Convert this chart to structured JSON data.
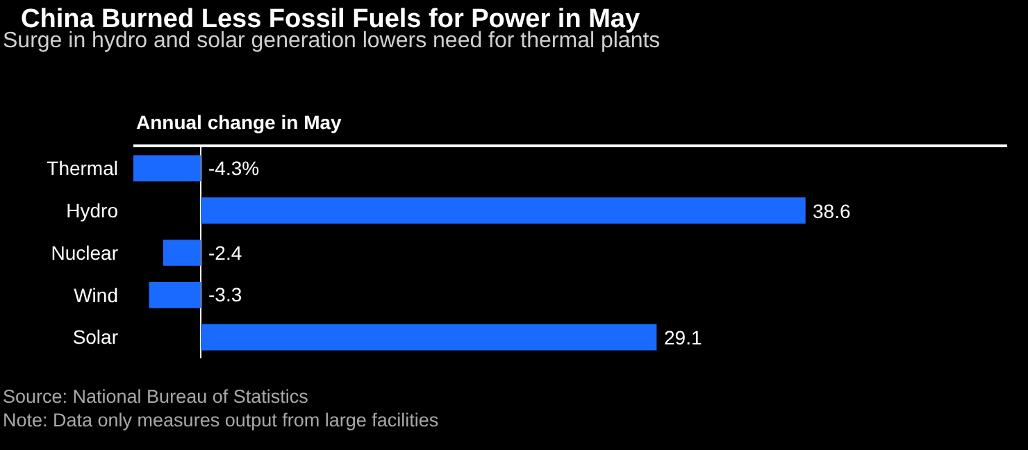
{
  "chart_data": {
    "type": "bar",
    "orientation": "horizontal",
    "title": "China Burned Less Fossil Fuels for Power in May",
    "subtitle": "Surge in hydro and solar generation lowers need for thermal plants",
    "xlabel": "Annual change in May",
    "categories": [
      "Thermal",
      "Hydro",
      "Nuclear",
      "Wind",
      "Solar"
    ],
    "values": [
      -4.3,
      38.6,
      -2.4,
      -3.3,
      29.1
    ],
    "value_labels": [
      "-4.3%",
      "38.6",
      "-2.4",
      "-3.3",
      "29.1"
    ],
    "color": "#1a6aff",
    "tick_labels": "y",
    "grid": false,
    "legend": false,
    "annotations": [
      "Source: National Bureau of Statistics",
      "Note: Data only measures output from large facilities"
    ]
  }
}
